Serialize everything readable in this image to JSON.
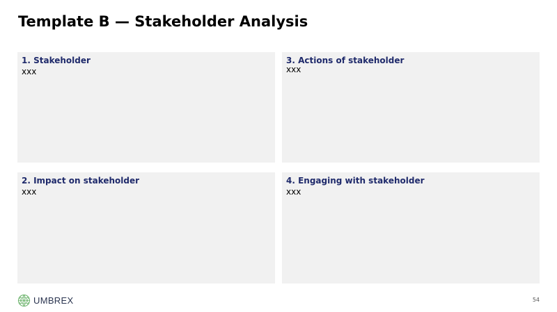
{
  "slide": {
    "title": "Template B — Stakeholder Analysis",
    "page_number": "54"
  },
  "panels": [
    {
      "heading": "1. Stakeholder",
      "body": "xxx"
    },
    {
      "heading": "3. Actions of stakeholder",
      "body": "xxx"
    },
    {
      "heading": "2. Impact on stakeholder",
      "body": "xxx"
    },
    {
      "heading": "4. Engaging with stakeholder",
      "body": "xxx"
    }
  ],
  "footer": {
    "logo_text": "UMBREX",
    "logo_icon": "umbrex-globe-icon"
  },
  "colors": {
    "heading": "#1f2a6b",
    "panel_bg": "#f1f1f1",
    "logo_green": "#6bb36b"
  }
}
